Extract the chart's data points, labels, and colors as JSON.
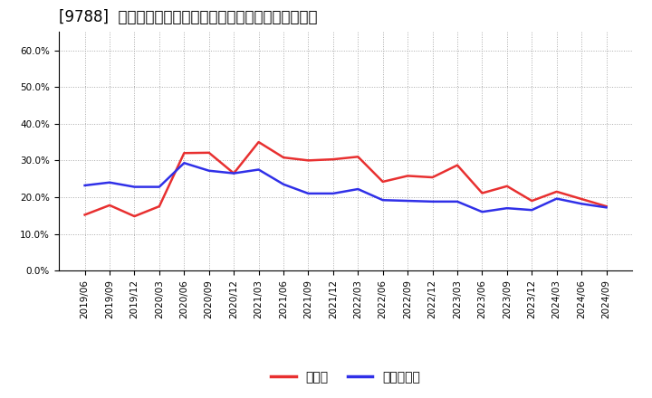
{
  "title": "[9788]  現預金、有利子負債の総資産に対する比率の推移",
  "x_labels": [
    "2019/06",
    "2019/09",
    "2019/12",
    "2020/03",
    "2020/06",
    "2020/09",
    "2020/12",
    "2021/03",
    "2021/06",
    "2021/09",
    "2021/12",
    "2022/03",
    "2022/06",
    "2022/09",
    "2022/12",
    "2023/03",
    "2023/06",
    "2023/09",
    "2023/12",
    "2024/03",
    "2024/06",
    "2024/09"
  ],
  "cash": [
    0.152,
    0.178,
    0.148,
    0.175,
    0.32,
    0.321,
    0.265,
    0.35,
    0.308,
    0.3,
    0.303,
    0.31,
    0.242,
    0.258,
    0.254,
    0.287,
    0.211,
    0.23,
    0.19,
    0.215,
    0.195,
    0.175
  ],
  "debt": [
    0.232,
    0.24,
    0.228,
    0.228,
    0.293,
    0.272,
    0.265,
    0.275,
    0.235,
    0.21,
    0.21,
    0.222,
    0.192,
    0.19,
    0.188,
    0.188,
    0.16,
    0.17,
    0.165,
    0.196,
    0.182,
    0.172
  ],
  "cash_color": "#e83030",
  "debt_color": "#3030e8",
  "legend_cash": "現預金",
  "legend_debt": "有利子負債",
  "ylim": [
    0.0,
    0.65
  ],
  "yticks": [
    0.0,
    0.1,
    0.2,
    0.3,
    0.4,
    0.5,
    0.6
  ],
  "bg_color": "#ffffff",
  "grid_color": "#aaaaaa",
  "title_fontsize": 12,
  "tick_fontsize": 7.5,
  "legend_fontsize": 10,
  "line_width": 1.8
}
